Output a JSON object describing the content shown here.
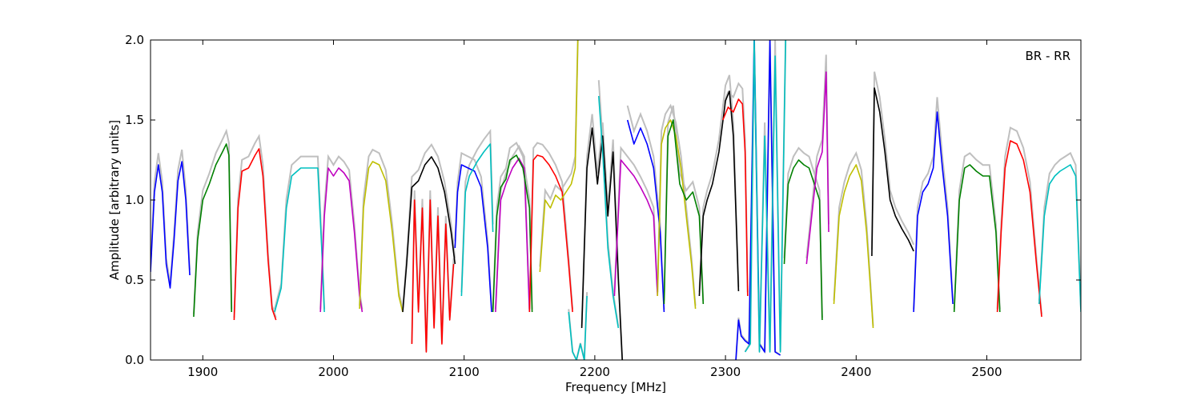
{
  "chart_data": {
    "type": "line",
    "title": "",
    "xlabel": "Frequency [MHz]",
    "ylabel": "Amplitude [arbitrary units]",
    "xlim": [
      1860,
      2572
    ],
    "ylim": [
      0.0,
      2.0
    ],
    "xticks": [
      1900,
      2000,
      2100,
      2200,
      2300,
      2400,
      2500
    ],
    "xtick_labels": [
      "1900",
      "2000",
      "2100",
      "2200",
      "2300",
      "2400",
      "2500"
    ],
    "yticks": [
      0.0,
      0.5,
      1.0,
      1.5,
      2.0
    ],
    "ytick_labels": [
      "0.0",
      "0.5",
      "1.0",
      "1.5",
      "2.0"
    ],
    "grid": false,
    "annotation": "BR - RR",
    "annotation_position": "top-right",
    "background_series_color": "#bfbfbf",
    "series": [
      {
        "color": "#0000ff",
        "x": [
          1860,
          1863,
          1866,
          1869,
          1872,
          1875,
          1878,
          1881,
          1884,
          1887,
          1890
        ],
        "y": [
          0.55,
          1.05,
          1.22,
          1.05,
          0.6,
          0.45,
          0.75,
          1.12,
          1.24,
          1.0,
          0.53
        ]
      },
      {
        "color": "#008000",
        "x": [
          1893,
          1896,
          1900,
          1905,
          1910,
          1915,
          1918,
          1920,
          1922
        ],
        "y": [
          0.27,
          0.75,
          1.0,
          1.1,
          1.22,
          1.3,
          1.35,
          1.28,
          0.3
        ]
      },
      {
        "color": "#ff0000",
        "x": [
          1924,
          1927,
          1930,
          1935,
          1940,
          1943,
          1946,
          1950,
          1953,
          1956
        ],
        "y": [
          0.25,
          0.95,
          1.18,
          1.2,
          1.28,
          1.32,
          1.15,
          0.62,
          0.32,
          0.25
        ]
      },
      {
        "color": "#00bfbf",
        "x": [
          1955,
          1960,
          1964,
          1968,
          1975,
          1982,
          1988,
          1991,
          1993
        ],
        "y": [
          0.3,
          0.45,
          0.95,
          1.15,
          1.2,
          1.2,
          1.2,
          0.7,
          0.3
        ]
      },
      {
        "color": "#bf00bf",
        "x": [
          1990,
          1993,
          1996,
          2000,
          2004,
          2008,
          2012,
          2016,
          2020,
          2022
        ],
        "y": [
          0.3,
          0.9,
          1.2,
          1.15,
          1.2,
          1.17,
          1.12,
          0.8,
          0.4,
          0.3
        ]
      },
      {
        "color": "#bfbf00",
        "x": [
          2020,
          2023,
          2027,
          2030,
          2035,
          2040,
          2045,
          2050,
          2053
        ],
        "y": [
          0.32,
          0.95,
          1.2,
          1.24,
          1.22,
          1.12,
          0.8,
          0.4,
          0.3
        ]
      },
      {
        "color": "#000000",
        "x": [
          2053,
          2056,
          2060,
          2065,
          2070,
          2075,
          2080,
          2085,
          2090,
          2093
        ],
        "y": [
          0.3,
          0.6,
          1.08,
          1.12,
          1.22,
          1.27,
          1.2,
          1.05,
          0.8,
          0.6
        ]
      },
      {
        "color": "#ff0000",
        "x": [
          2060,
          2062,
          2065,
          2068,
          2071,
          2074,
          2077,
          2080,
          2083,
          2086,
          2089,
          2092
        ],
        "y": [
          0.1,
          1.0,
          0.3,
          0.95,
          0.05,
          1.0,
          0.2,
          0.9,
          0.1,
          0.85,
          0.25,
          0.6
        ]
      },
      {
        "color": "#0000ff",
        "x": [
          2093,
          2095,
          2098,
          2103,
          2108,
          2113,
          2118,
          2121
        ],
        "y": [
          0.7,
          1.05,
          1.22,
          1.2,
          1.18,
          1.08,
          0.7,
          0.3
        ]
      },
      {
        "color": "#00bfbf",
        "x": [
          2098,
          2101,
          2104,
          2110,
          2115,
          2120,
          2122
        ],
        "y": [
          0.4,
          1.05,
          1.15,
          1.24,
          1.3,
          1.35,
          0.8
        ]
      },
      {
        "color": "#bf00bf",
        "x": [
          2124,
          2128,
          2132,
          2137,
          2142,
          2146,
          2150
        ],
        "y": [
          0.3,
          1.0,
          1.1,
          1.2,
          1.26,
          1.2,
          0.3
        ]
      },
      {
        "color": "#008000",
        "x": [
          2122,
          2125,
          2128,
          2132,
          2135,
          2140,
          2145,
          2150,
          2152
        ],
        "y": [
          0.3,
          0.9,
          1.08,
          1.13,
          1.25,
          1.28,
          1.2,
          0.95,
          0.3
        ]
      },
      {
        "color": "#ff0000",
        "x": [
          2150,
          2153,
          2156,
          2160,
          2165,
          2170,
          2175,
          2180,
          2183
        ],
        "y": [
          0.3,
          1.25,
          1.28,
          1.27,
          1.22,
          1.15,
          1.05,
          0.6,
          0.3
        ]
      },
      {
        "color": "#bfbf00",
        "x": [
          2158,
          2162,
          2166,
          2170,
          2174,
          2178,
          2182,
          2185,
          2187
        ],
        "y": [
          0.55,
          1.0,
          0.95,
          1.03,
          1.0,
          1.05,
          1.1,
          1.2,
          2.0
        ]
      },
      {
        "color": "#00bfbf",
        "x": [
          2180,
          2183,
          2186,
          2189,
          2192,
          2194
        ],
        "y": [
          0.3,
          0.05,
          0.0,
          0.1,
          0.0,
          0.4
        ]
      },
      {
        "color": "#000000",
        "x": [
          2190,
          2194,
          2198,
          2202,
          2206,
          2210,
          2214,
          2218,
          2221
        ],
        "y": [
          0.2,
          1.2,
          1.45,
          1.1,
          1.4,
          0.9,
          1.3,
          0.5,
          0.0
        ]
      },
      {
        "color": "#00bfbf",
        "x": [
          2203,
          2206,
          2210,
          2214,
          2218
        ],
        "y": [
          1.65,
          1.3,
          0.7,
          0.4,
          0.2
        ]
      },
      {
        "color": "#bf00bf",
        "x": [
          2215,
          2220,
          2225,
          2230,
          2235,
          2240,
          2245,
          2248
        ],
        "y": [
          0.4,
          1.25,
          1.2,
          1.15,
          1.08,
          1.0,
          0.9,
          0.4
        ]
      },
      {
        "color": "#0000ff",
        "x": [
          2225,
          2230,
          2235,
          2240,
          2245,
          2250,
          2253
        ],
        "y": [
          1.5,
          1.35,
          1.45,
          1.35,
          1.2,
          0.8,
          0.3
        ]
      },
      {
        "color": "#bfbf00",
        "x": [
          2248,
          2251,
          2254,
          2258,
          2262,
          2266,
          2270,
          2274,
          2277
        ],
        "y": [
          0.4,
          1.35,
          1.45,
          1.5,
          1.4,
          1.2,
          0.9,
          0.6,
          0.32
        ]
      },
      {
        "color": "#008000",
        "x": [
          2253,
          2256,
          2260,
          2265,
          2270,
          2275,
          2280,
          2283
        ],
        "y": [
          0.35,
          1.4,
          1.5,
          1.1,
          1.0,
          1.05,
          0.9,
          0.35
        ]
      },
      {
        "color": "#000000",
        "x": [
          2280,
          2283,
          2286,
          2290,
          2295,
          2300,
          2303,
          2306,
          2310
        ],
        "y": [
          0.4,
          0.9,
          1.0,
          1.1,
          1.3,
          1.62,
          1.68,
          1.4,
          0.43
        ]
      },
      {
        "color": "#ff0000",
        "x": [
          2298,
          2302,
          2306,
          2310,
          2313,
          2315,
          2317
        ],
        "y": [
          1.5,
          1.58,
          1.55,
          1.63,
          1.6,
          1.3,
          0.4
        ]
      },
      {
        "color": "#0000ff",
        "x": [
          2308,
          2310,
          2312,
          2315,
          2318,
          2322,
          2326,
          2330,
          2334,
          2338,
          2342
        ],
        "y": [
          0.0,
          0.25,
          0.15,
          0.12,
          0.1,
          2.0,
          0.1,
          0.05,
          2.0,
          0.05,
          0.03
        ]
      },
      {
        "color": "#00bfbf",
        "x": [
          2315,
          2319,
          2322,
          2326,
          2330,
          2334,
          2338,
          2342,
          2346
        ],
        "y": [
          0.05,
          0.1,
          2.0,
          0.05,
          1.4,
          0.05,
          1.9,
          0.05,
          2.0
        ]
      },
      {
        "color": "#008000",
        "x": [
          2345,
          2348,
          2352,
          2356,
          2360,
          2364,
          2368,
          2372,
          2374
        ],
        "y": [
          0.6,
          1.1,
          1.2,
          1.25,
          1.22,
          1.2,
          1.1,
          1.0,
          0.25
        ]
      },
      {
        "color": "#bf00bf",
        "x": [
          2362,
          2366,
          2370,
          2374,
          2377,
          2379
        ],
        "y": [
          0.6,
          0.9,
          1.2,
          1.3,
          1.8,
          0.8
        ]
      },
      {
        "color": "#bfbf00",
        "x": [
          2383,
          2387,
          2391,
          2395,
          2400,
          2404,
          2408,
          2411,
          2413
        ],
        "y": [
          0.35,
          0.9,
          1.05,
          1.15,
          1.22,
          1.12,
          0.8,
          0.45,
          0.2
        ]
      },
      {
        "color": "#000000",
        "x": [
          2412,
          2414,
          2418,
          2422,
          2426,
          2430,
          2435,
          2440,
          2444
        ],
        "y": [
          0.65,
          1.7,
          1.55,
          1.3,
          1.0,
          0.9,
          0.82,
          0.75,
          0.68
        ]
      },
      {
        "color": "#0000ff",
        "x": [
          2444,
          2447,
          2451,
          2455,
          2459,
          2462,
          2466,
          2470,
          2474
        ],
        "y": [
          0.3,
          0.9,
          1.05,
          1.1,
          1.2,
          1.55,
          1.2,
          0.9,
          0.35
        ]
      },
      {
        "color": "#008000",
        "x": [
          2475,
          2479,
          2483,
          2487,
          2492,
          2497,
          2502,
          2507,
          2510
        ],
        "y": [
          0.3,
          1.0,
          1.2,
          1.22,
          1.18,
          1.15,
          1.15,
          0.8,
          0.3
        ]
      },
      {
        "color": "#ff0000",
        "x": [
          2508,
          2511,
          2514,
          2518,
          2523,
          2528,
          2533,
          2538,
          2542
        ],
        "y": [
          0.3,
          0.8,
          1.2,
          1.37,
          1.35,
          1.25,
          1.05,
          0.6,
          0.27
        ]
      },
      {
        "color": "#00bfbf",
        "x": [
          2540,
          2544,
          2548,
          2552,
          2556,
          2560,
          2564,
          2568,
          2572
        ],
        "y": [
          0.35,
          0.9,
          1.1,
          1.15,
          1.18,
          1.2,
          1.22,
          1.15,
          0.3
        ]
      }
    ]
  }
}
